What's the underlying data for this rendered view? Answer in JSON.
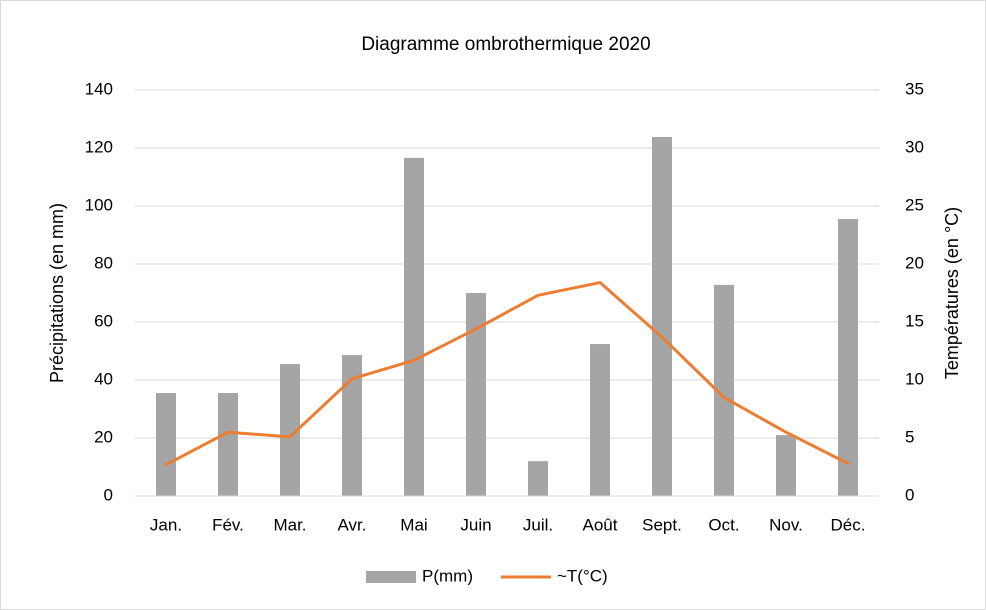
{
  "chart_data": {
    "type": "bar_line",
    "title": "Diagramme ombrothermique 2020",
    "y_label": "Précipitations (en mm)",
    "y2_label": "Températures (en °C)",
    "categories": [
      "Jan.",
      "Fév.",
      "Mar.",
      "Avr.",
      "Mai",
      "Juin",
      "Juil.",
      "Août",
      "Sept.",
      "Oct.",
      "Nov.",
      "Déc."
    ],
    "series": [
      {
        "name": "P(mm)",
        "type": "bar",
        "color": "#a5a5a5",
        "values": [
          35.5,
          35.5,
          45.5,
          48.6,
          116.6,
          70,
          12,
          52.4,
          123.8,
          72.8,
          21,
          95.5
        ]
      },
      {
        "name": "~T(°C)",
        "type": "line",
        "axis": "y2",
        "color": "#ed7d31",
        "values": [
          2.7,
          5.5,
          5.1,
          10.1,
          11.7,
          14.4,
          17.3,
          18.4,
          13.7,
          8.5,
          5.5,
          2.8
        ]
      }
    ],
    "ylim": [
      0,
      140
    ],
    "yticks": [
      0,
      20,
      40,
      60,
      80,
      100,
      120,
      140
    ],
    "y2lim": [
      0,
      35
    ],
    "y2ticks": [
      0,
      5,
      10,
      15,
      20,
      25,
      30,
      35
    ],
    "grid": true,
    "legend": "bottom"
  }
}
